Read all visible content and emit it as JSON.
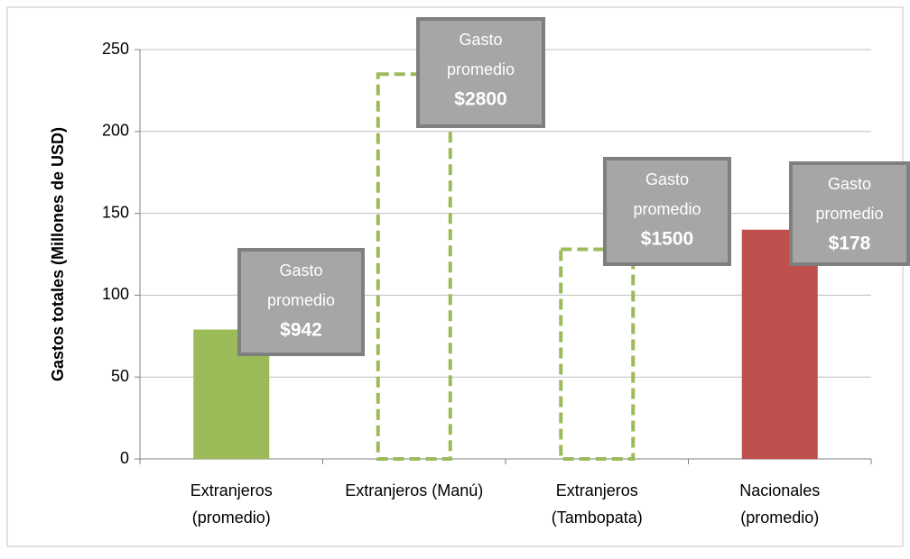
{
  "chart_data": {
    "type": "bar",
    "y_axis_label": "Gastos totales (Millones de USD)",
    "categories": [
      [
        "Extranjeros",
        "(promedio)"
      ],
      [
        "Extranjeros (Manú)"
      ],
      [
        "Extranjeros",
        "(Tambopata)"
      ],
      [
        "Nacionales",
        "(promedio)"
      ]
    ],
    "values": [
      79,
      235,
      128,
      140
    ],
    "colors": [
      "#9bbb59",
      "#9bbb59",
      "#9bbb59",
      "#c0504d"
    ],
    "bar_styles": [
      "filled",
      "dashed",
      "dashed",
      "filled"
    ],
    "annotations": [
      [
        "Gasto",
        "promedio",
        "$942"
      ],
      [
        "Gasto",
        "promedio",
        "$2800"
      ],
      [
        "Gasto",
        "promedio",
        "$1500"
      ],
      [
        "Gasto",
        "promedio",
        "$178"
      ]
    ],
    "ylim": [
      0,
      250
    ],
    "yticks": [
      0,
      50,
      100,
      150,
      200,
      250
    ],
    "grid": true
  }
}
